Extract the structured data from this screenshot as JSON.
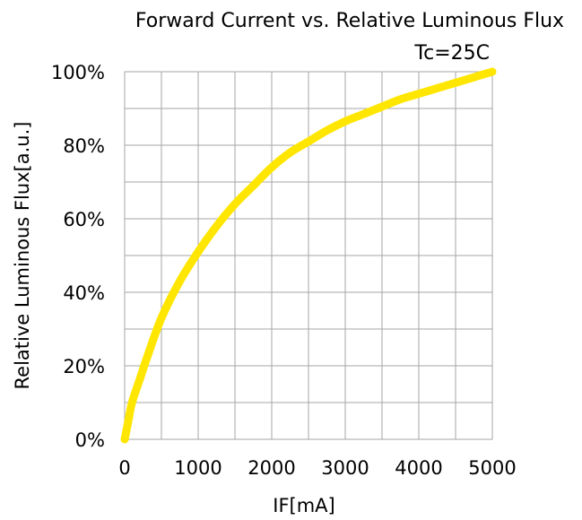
{
  "chart_data": {
    "type": "line",
    "title": "Forward Current vs. Relative Luminous Flux",
    "condition": "Tc=25C",
    "xlabel": "IF[mA]",
    "ylabel": "Relative Luminous Flux[a.u.]",
    "xlim": [
      0,
      5000
    ],
    "ylim": [
      0,
      100
    ],
    "x_ticks": [
      "0",
      "1000",
      "2000",
      "3000",
      "4000",
      "5000"
    ],
    "y_ticks": [
      "0%",
      "20%",
      "40%",
      "60%",
      "80%",
      "100%"
    ],
    "grid": true,
    "series": [
      {
        "color": "#ffe600",
        "x": [
          0,
          50,
          100,
          200,
          300,
          500,
          750,
          1000,
          1250,
          1500,
          1750,
          2000,
          2250,
          2500,
          2750,
          3000,
          3250,
          3500,
          3750,
          4000,
          4250,
          4500,
          4750,
          5000
        ],
        "y": [
          0,
          5,
          10,
          16,
          22,
          33,
          43,
          51,
          58,
          64,
          69,
          74,
          78,
          81,
          84,
          86.5,
          88.5,
          90.5,
          92.5,
          94,
          95.5,
          97,
          98.5,
          100
        ]
      }
    ]
  }
}
